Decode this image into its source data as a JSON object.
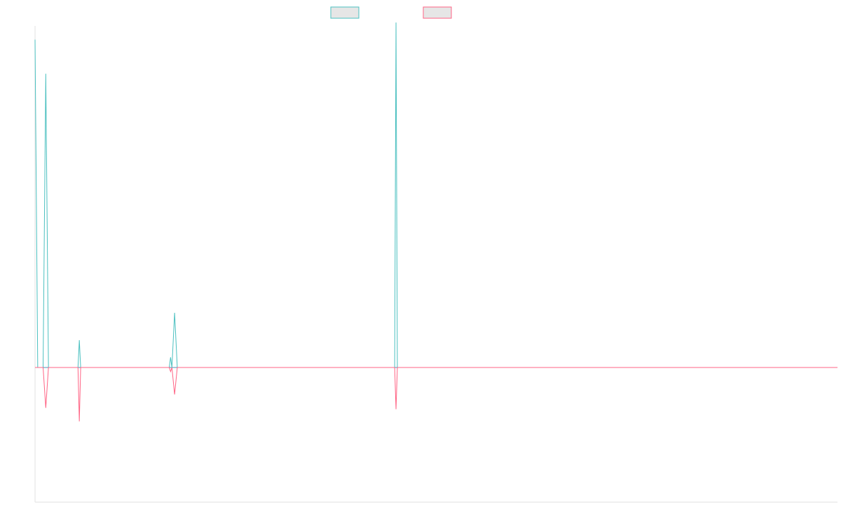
{
  "chart_data": {
    "type": "line",
    "x_count": 300,
    "ylim": [
      -100,
      100
    ],
    "legend_position": "top-center",
    "grid": false,
    "colors": {
      "teal": "#4bc0c0",
      "pink": "#ff6384",
      "axis": "#e2e2e2",
      "zero": "#4a94b8",
      "legend_fill": "#e6e6e6"
    },
    "series": [
      {
        "color": "#4bc0c0",
        "points": [
          {
            "x": 0,
            "y": 96
          },
          {
            "x": 1,
            "y": 0
          },
          {
            "x": 3,
            "y": 0
          },
          {
            "x": 4,
            "y": 86
          },
          {
            "x": 5,
            "y": 0
          },
          {
            "x": 16,
            "y": 0
          },
          {
            "x": 16.5,
            "y": 8
          },
          {
            "x": 17,
            "y": 0
          },
          {
            "x": 50,
            "y": 0
          },
          {
            "x": 50.5,
            "y": 3
          },
          {
            "x": 51,
            "y": 0
          },
          {
            "x": 52,
            "y": 16
          },
          {
            "x": 53,
            "y": 0
          },
          {
            "x": 134,
            "y": 0
          },
          {
            "x": 134.5,
            "y": 101
          },
          {
            "x": 135,
            "y": 0
          },
          {
            "x": 299,
            "y": 0
          }
        ]
      },
      {
        "color": "#ff6384",
        "points": [
          {
            "x": 0,
            "y": 0
          },
          {
            "x": 3,
            "y": 0
          },
          {
            "x": 4,
            "y": -30
          },
          {
            "x": 5,
            "y": 0
          },
          {
            "x": 16,
            "y": 0
          },
          {
            "x": 16.5,
            "y": -40
          },
          {
            "x": 17,
            "y": 0
          },
          {
            "x": 50,
            "y": 0
          },
          {
            "x": 50.5,
            "y": -3
          },
          {
            "x": 51,
            "y": 0
          },
          {
            "x": 52,
            "y": -20
          },
          {
            "x": 53,
            "y": 0
          },
          {
            "x": 134,
            "y": 0
          },
          {
            "x": 134.5,
            "y": -31
          },
          {
            "x": 135,
            "y": 0
          },
          {
            "x": 299,
            "y": 0
          }
        ]
      }
    ]
  }
}
